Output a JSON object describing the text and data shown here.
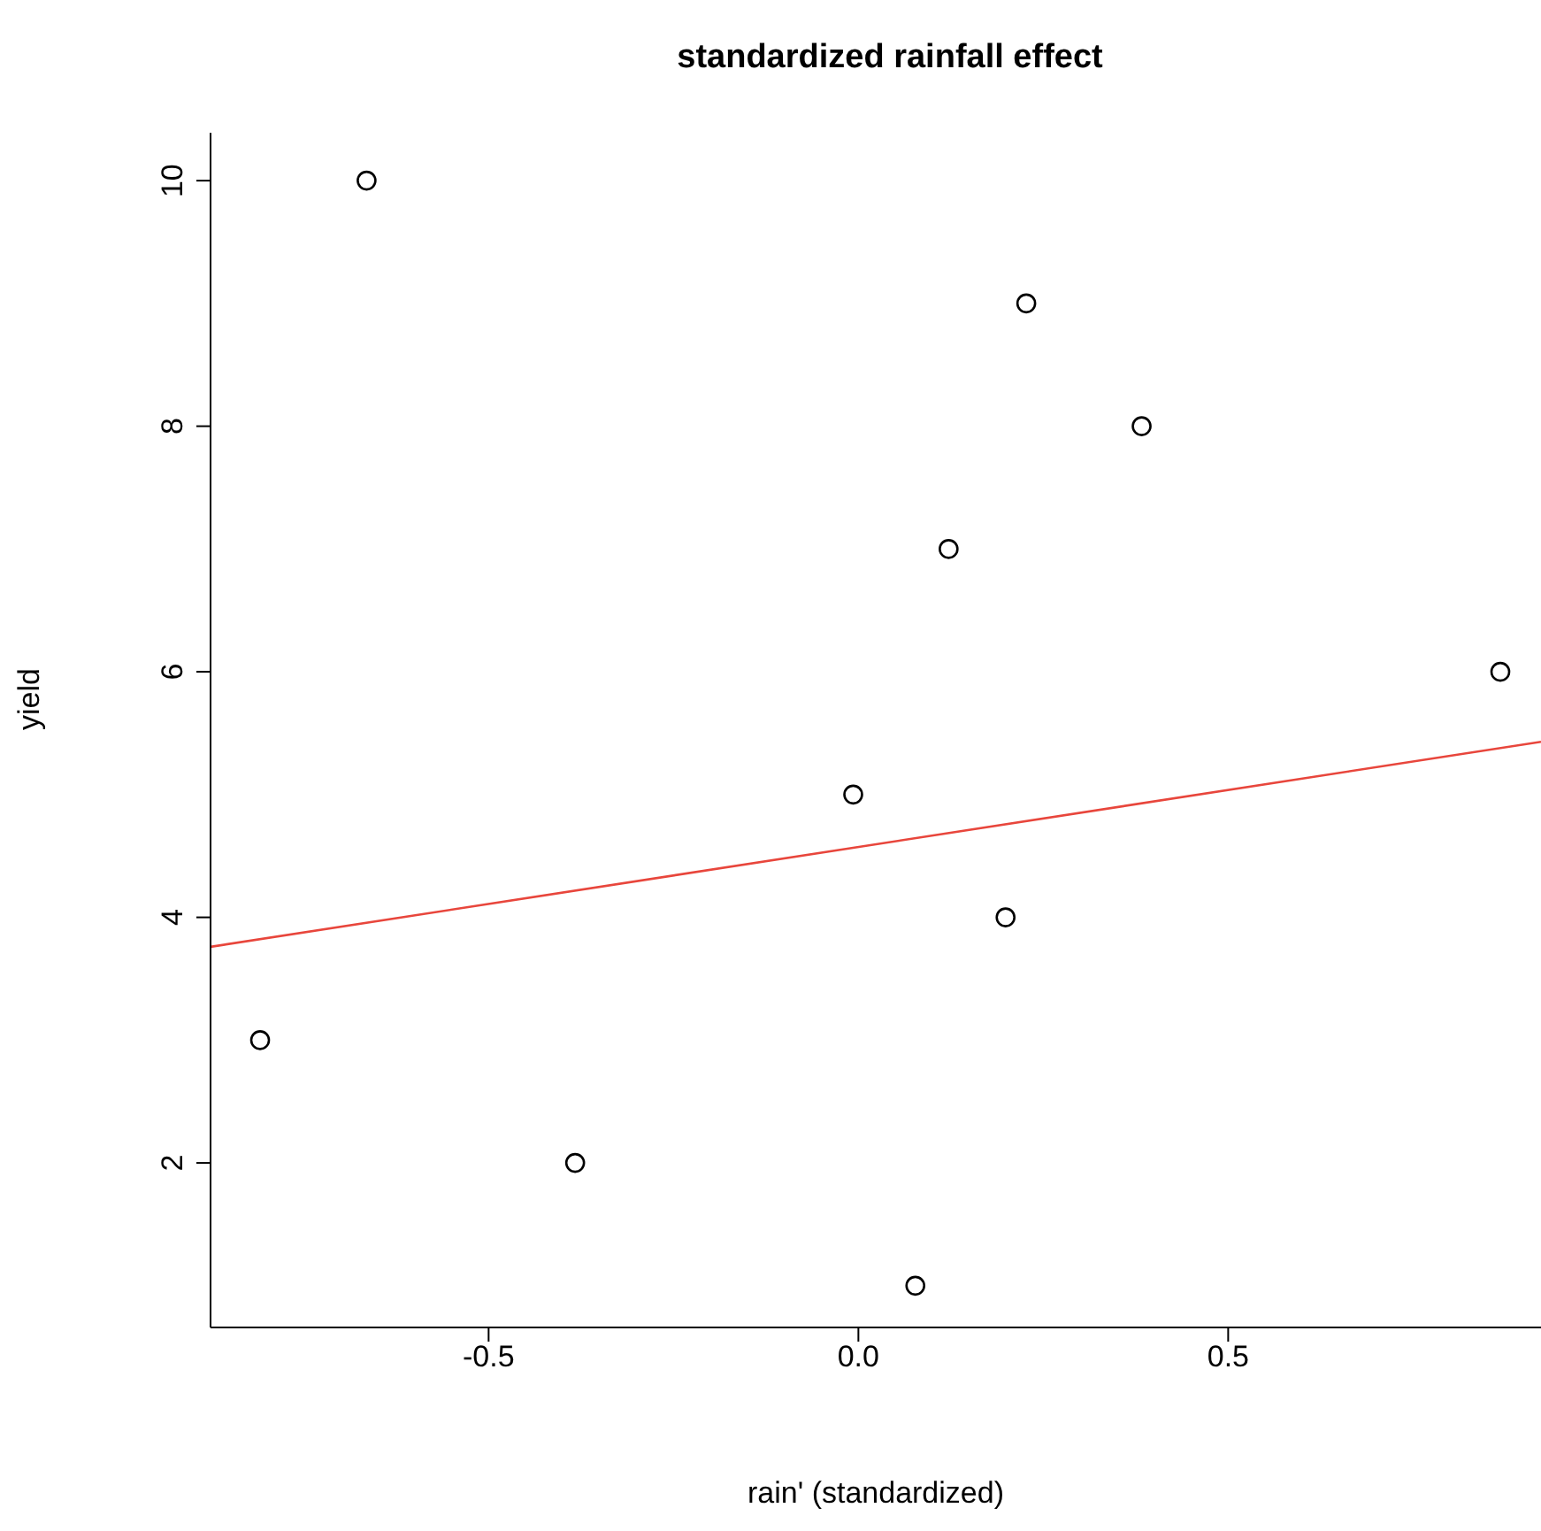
{
  "chart_data": {
    "type": "scatter",
    "title": "standardized rainfall effect",
    "xlabel": "rain' (standardized)",
    "ylabel": "yield",
    "x": [
      -0.665,
      -0.809,
      -0.383,
      -0.007,
      0.077,
      0.122,
      0.199,
      0.227,
      0.383,
      0.868
    ],
    "series": [
      {
        "color": "#000000",
        "marker": "circle",
        "values": [
          10,
          3,
          2,
          5,
          1,
          7,
          4,
          9,
          8,
          6
        ]
      },
      {
        "type": "line",
        "color": "#e8463c",
        "marker": "none",
        "x": [
          -0.876,
          0.923
        ],
        "values": [
          3.76,
          5.43
        ]
      }
    ],
    "xlim": [
      -0.876,
      0.923
    ],
    "xticks": [
      -0.5,
      {
        "value": 0,
        "label": "0.0"
      },
      0.5
    ],
    "ylim": [
      0.66,
      10.39
    ],
    "yticks": [
      2,
      4,
      6,
      8,
      10
    ]
  }
}
